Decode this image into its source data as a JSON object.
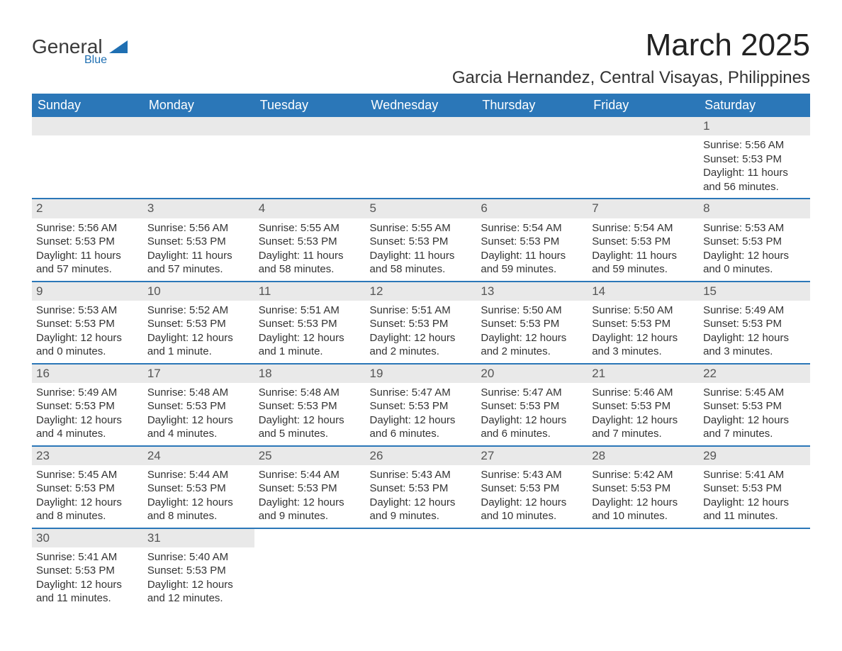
{
  "logo": {
    "word1": "General",
    "word2": "Blue"
  },
  "title": "March 2025",
  "location": "Garcia Hernandez, Central Visayas, Philippines",
  "day_headers": [
    "Sunday",
    "Monday",
    "Tuesday",
    "Wednesday",
    "Thursday",
    "Friday",
    "Saturday"
  ],
  "colors": {
    "header_bg": "#2b77b8",
    "header_text": "#ffffff",
    "daynum_bg": "#e9e9e9",
    "row_border": "#2b77b8",
    "text": "#333333",
    "logo_accent": "#1f6fb2",
    "page_bg": "#ffffff"
  },
  "typography": {
    "title_fontsize": 44,
    "location_fontsize": 24,
    "header_fontsize": 18,
    "daynum_fontsize": 17,
    "body_fontsize": 15
  },
  "weeks": [
    [
      null,
      null,
      null,
      null,
      null,
      null,
      {
        "n": "1",
        "sunrise": "Sunrise: 5:56 AM",
        "sunset": "Sunset: 5:53 PM",
        "dl1": "Daylight: 11 hours",
        "dl2": "and 56 minutes."
      }
    ],
    [
      {
        "n": "2",
        "sunrise": "Sunrise: 5:56 AM",
        "sunset": "Sunset: 5:53 PM",
        "dl1": "Daylight: 11 hours",
        "dl2": "and 57 minutes."
      },
      {
        "n": "3",
        "sunrise": "Sunrise: 5:56 AM",
        "sunset": "Sunset: 5:53 PM",
        "dl1": "Daylight: 11 hours",
        "dl2": "and 57 minutes."
      },
      {
        "n": "4",
        "sunrise": "Sunrise: 5:55 AM",
        "sunset": "Sunset: 5:53 PM",
        "dl1": "Daylight: 11 hours",
        "dl2": "and 58 minutes."
      },
      {
        "n": "5",
        "sunrise": "Sunrise: 5:55 AM",
        "sunset": "Sunset: 5:53 PM",
        "dl1": "Daylight: 11 hours",
        "dl2": "and 58 minutes."
      },
      {
        "n": "6",
        "sunrise": "Sunrise: 5:54 AM",
        "sunset": "Sunset: 5:53 PM",
        "dl1": "Daylight: 11 hours",
        "dl2": "and 59 minutes."
      },
      {
        "n": "7",
        "sunrise": "Sunrise: 5:54 AM",
        "sunset": "Sunset: 5:53 PM",
        "dl1": "Daylight: 11 hours",
        "dl2": "and 59 minutes."
      },
      {
        "n": "8",
        "sunrise": "Sunrise: 5:53 AM",
        "sunset": "Sunset: 5:53 PM",
        "dl1": "Daylight: 12 hours",
        "dl2": "and 0 minutes."
      }
    ],
    [
      {
        "n": "9",
        "sunrise": "Sunrise: 5:53 AM",
        "sunset": "Sunset: 5:53 PM",
        "dl1": "Daylight: 12 hours",
        "dl2": "and 0 minutes."
      },
      {
        "n": "10",
        "sunrise": "Sunrise: 5:52 AM",
        "sunset": "Sunset: 5:53 PM",
        "dl1": "Daylight: 12 hours",
        "dl2": "and 1 minute."
      },
      {
        "n": "11",
        "sunrise": "Sunrise: 5:51 AM",
        "sunset": "Sunset: 5:53 PM",
        "dl1": "Daylight: 12 hours",
        "dl2": "and 1 minute."
      },
      {
        "n": "12",
        "sunrise": "Sunrise: 5:51 AM",
        "sunset": "Sunset: 5:53 PM",
        "dl1": "Daylight: 12 hours",
        "dl2": "and 2 minutes."
      },
      {
        "n": "13",
        "sunrise": "Sunrise: 5:50 AM",
        "sunset": "Sunset: 5:53 PM",
        "dl1": "Daylight: 12 hours",
        "dl2": "and 2 minutes."
      },
      {
        "n": "14",
        "sunrise": "Sunrise: 5:50 AM",
        "sunset": "Sunset: 5:53 PM",
        "dl1": "Daylight: 12 hours",
        "dl2": "and 3 minutes."
      },
      {
        "n": "15",
        "sunrise": "Sunrise: 5:49 AM",
        "sunset": "Sunset: 5:53 PM",
        "dl1": "Daylight: 12 hours",
        "dl2": "and 3 minutes."
      }
    ],
    [
      {
        "n": "16",
        "sunrise": "Sunrise: 5:49 AM",
        "sunset": "Sunset: 5:53 PM",
        "dl1": "Daylight: 12 hours",
        "dl2": "and 4 minutes."
      },
      {
        "n": "17",
        "sunrise": "Sunrise: 5:48 AM",
        "sunset": "Sunset: 5:53 PM",
        "dl1": "Daylight: 12 hours",
        "dl2": "and 4 minutes."
      },
      {
        "n": "18",
        "sunrise": "Sunrise: 5:48 AM",
        "sunset": "Sunset: 5:53 PM",
        "dl1": "Daylight: 12 hours",
        "dl2": "and 5 minutes."
      },
      {
        "n": "19",
        "sunrise": "Sunrise: 5:47 AM",
        "sunset": "Sunset: 5:53 PM",
        "dl1": "Daylight: 12 hours",
        "dl2": "and 6 minutes."
      },
      {
        "n": "20",
        "sunrise": "Sunrise: 5:47 AM",
        "sunset": "Sunset: 5:53 PM",
        "dl1": "Daylight: 12 hours",
        "dl2": "and 6 minutes."
      },
      {
        "n": "21",
        "sunrise": "Sunrise: 5:46 AM",
        "sunset": "Sunset: 5:53 PM",
        "dl1": "Daylight: 12 hours",
        "dl2": "and 7 minutes."
      },
      {
        "n": "22",
        "sunrise": "Sunrise: 5:45 AM",
        "sunset": "Sunset: 5:53 PM",
        "dl1": "Daylight: 12 hours",
        "dl2": "and 7 minutes."
      }
    ],
    [
      {
        "n": "23",
        "sunrise": "Sunrise: 5:45 AM",
        "sunset": "Sunset: 5:53 PM",
        "dl1": "Daylight: 12 hours",
        "dl2": "and 8 minutes."
      },
      {
        "n": "24",
        "sunrise": "Sunrise: 5:44 AM",
        "sunset": "Sunset: 5:53 PM",
        "dl1": "Daylight: 12 hours",
        "dl2": "and 8 minutes."
      },
      {
        "n": "25",
        "sunrise": "Sunrise: 5:44 AM",
        "sunset": "Sunset: 5:53 PM",
        "dl1": "Daylight: 12 hours",
        "dl2": "and 9 minutes."
      },
      {
        "n": "26",
        "sunrise": "Sunrise: 5:43 AM",
        "sunset": "Sunset: 5:53 PM",
        "dl1": "Daylight: 12 hours",
        "dl2": "and 9 minutes."
      },
      {
        "n": "27",
        "sunrise": "Sunrise: 5:43 AM",
        "sunset": "Sunset: 5:53 PM",
        "dl1": "Daylight: 12 hours",
        "dl2": "and 10 minutes."
      },
      {
        "n": "28",
        "sunrise": "Sunrise: 5:42 AM",
        "sunset": "Sunset: 5:53 PM",
        "dl1": "Daylight: 12 hours",
        "dl2": "and 10 minutes."
      },
      {
        "n": "29",
        "sunrise": "Sunrise: 5:41 AM",
        "sunset": "Sunset: 5:53 PM",
        "dl1": "Daylight: 12 hours",
        "dl2": "and 11 minutes."
      }
    ],
    [
      {
        "n": "30",
        "sunrise": "Sunrise: 5:41 AM",
        "sunset": "Sunset: 5:53 PM",
        "dl1": "Daylight: 12 hours",
        "dl2": "and 11 minutes."
      },
      {
        "n": "31",
        "sunrise": "Sunrise: 5:40 AM",
        "sunset": "Sunset: 5:53 PM",
        "dl1": "Daylight: 12 hours",
        "dl2": "and 12 minutes."
      },
      null,
      null,
      null,
      null,
      null
    ]
  ]
}
